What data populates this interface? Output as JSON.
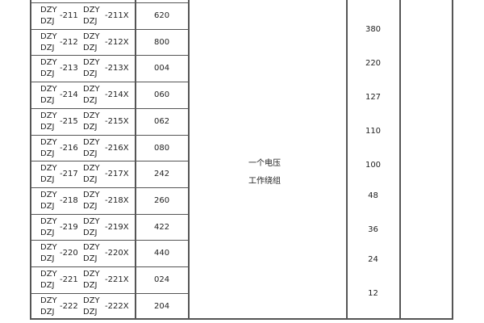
{
  "table": {
    "rows": [
      {
        "num": "-211",
        "numx": "-211X",
        "code": "620"
      },
      {
        "num": "-212",
        "numx": "-212X",
        "code": "800"
      },
      {
        "num": "-213",
        "numx": "-213X",
        "code": "004"
      },
      {
        "num": "-214",
        "numx": "-214X",
        "code": "060"
      },
      {
        "num": "-215",
        "numx": "-215X",
        "code": "062"
      },
      {
        "num": "-216",
        "numx": "-216X",
        "code": "080"
      },
      {
        "num": "-217",
        "numx": "-217X",
        "code": "242"
      },
      {
        "num": "-218",
        "numx": "-218X",
        "code": "260"
      },
      {
        "num": "-219",
        "numx": "-219X",
        "code": "422"
      },
      {
        "num": "-220",
        "numx": "-220X",
        "code": "440"
      },
      {
        "num": "-221",
        "numx": "-221X",
        "code": "024"
      },
      {
        "num": "-222",
        "numx": "-222X",
        "code": "204"
      }
    ],
    "prefix_top": "DZY",
    "prefix_bottom": "DZJ",
    "description": [
      "一个电压",
      "工作绕组"
    ],
    "voltages": [
      "380",
      "220",
      "127",
      "110",
      "100",
      "48",
      "36",
      "24",
      "12"
    ]
  }
}
